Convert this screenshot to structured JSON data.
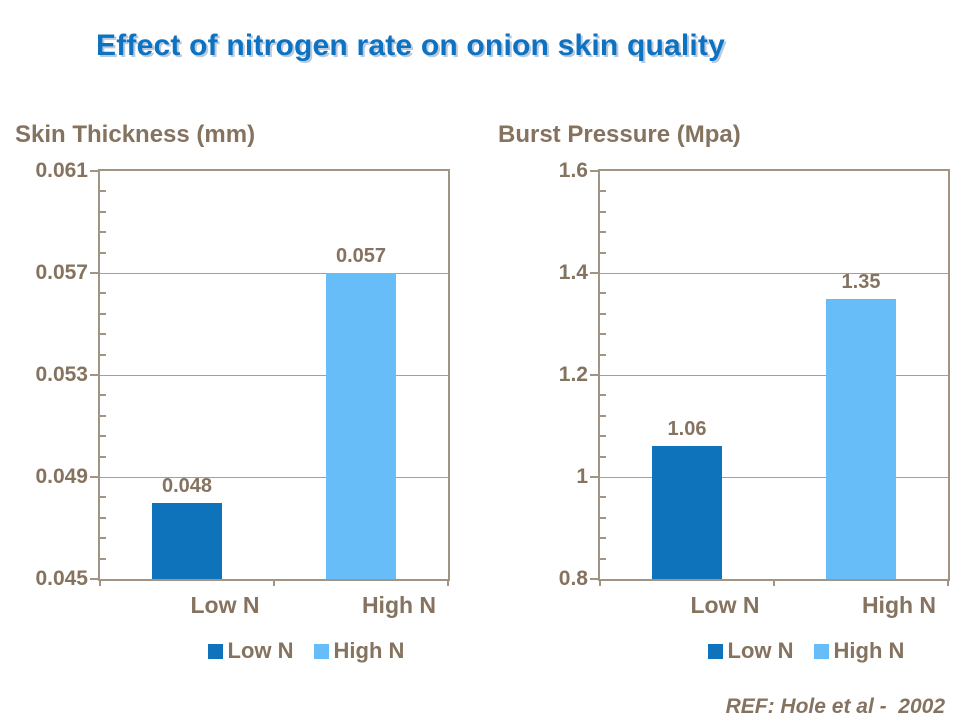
{
  "title": "Effect of nitrogen rate on onion skin quality",
  "footer": {
    "ref": "REF: Hole et al -  2002"
  },
  "colors": {
    "title_blue": "#0d72c2",
    "low_n_bar": "#0e73ba",
    "high_n_bar": "#66bdf8",
    "text_brown": "#85735f",
    "axis_frame": "#a29484",
    "gridline": "#ab9e8e",
    "background": "#ffffff"
  },
  "chart_data": [
    {
      "type": "bar",
      "title": "Skin Thickness (mm)",
      "categories": [
        "Low N",
        "High N"
      ],
      "values": [
        0.048,
        0.057
      ],
      "value_labels": [
        "0.048",
        "0.057"
      ],
      "bar_colors": [
        "#0e73ba",
        "#66bdf8"
      ],
      "ylim": [
        0.045,
        0.061
      ],
      "yticks": [
        0.045,
        0.049,
        0.053,
        0.057,
        0.061
      ],
      "ytick_labels": [
        "0.045",
        "0.049",
        "0.053",
        "0.057",
        "0.061"
      ],
      "minor_ticks_per_interval": 4,
      "grid": true,
      "legend": [
        "Low N",
        "High N"
      ],
      "legend_position": "bottom"
    },
    {
      "type": "bar",
      "title": "Burst Pressure (Mpa)",
      "categories": [
        "Low N",
        "High N"
      ],
      "values": [
        1.06,
        1.35
      ],
      "value_labels": [
        "1.06",
        "1.35"
      ],
      "bar_colors": [
        "#0e73ba",
        "#66bdf8"
      ],
      "ylim": [
        0.8,
        1.6
      ],
      "yticks": [
        0.8,
        1.0,
        1.2,
        1.4,
        1.6
      ],
      "ytick_labels": [
        "0.8",
        "1",
        "1.2",
        "1.4",
        "1.6"
      ],
      "minor_ticks_per_interval": 4,
      "grid": true,
      "legend": [
        "Low N",
        "High N"
      ],
      "legend_position": "bottom"
    }
  ]
}
